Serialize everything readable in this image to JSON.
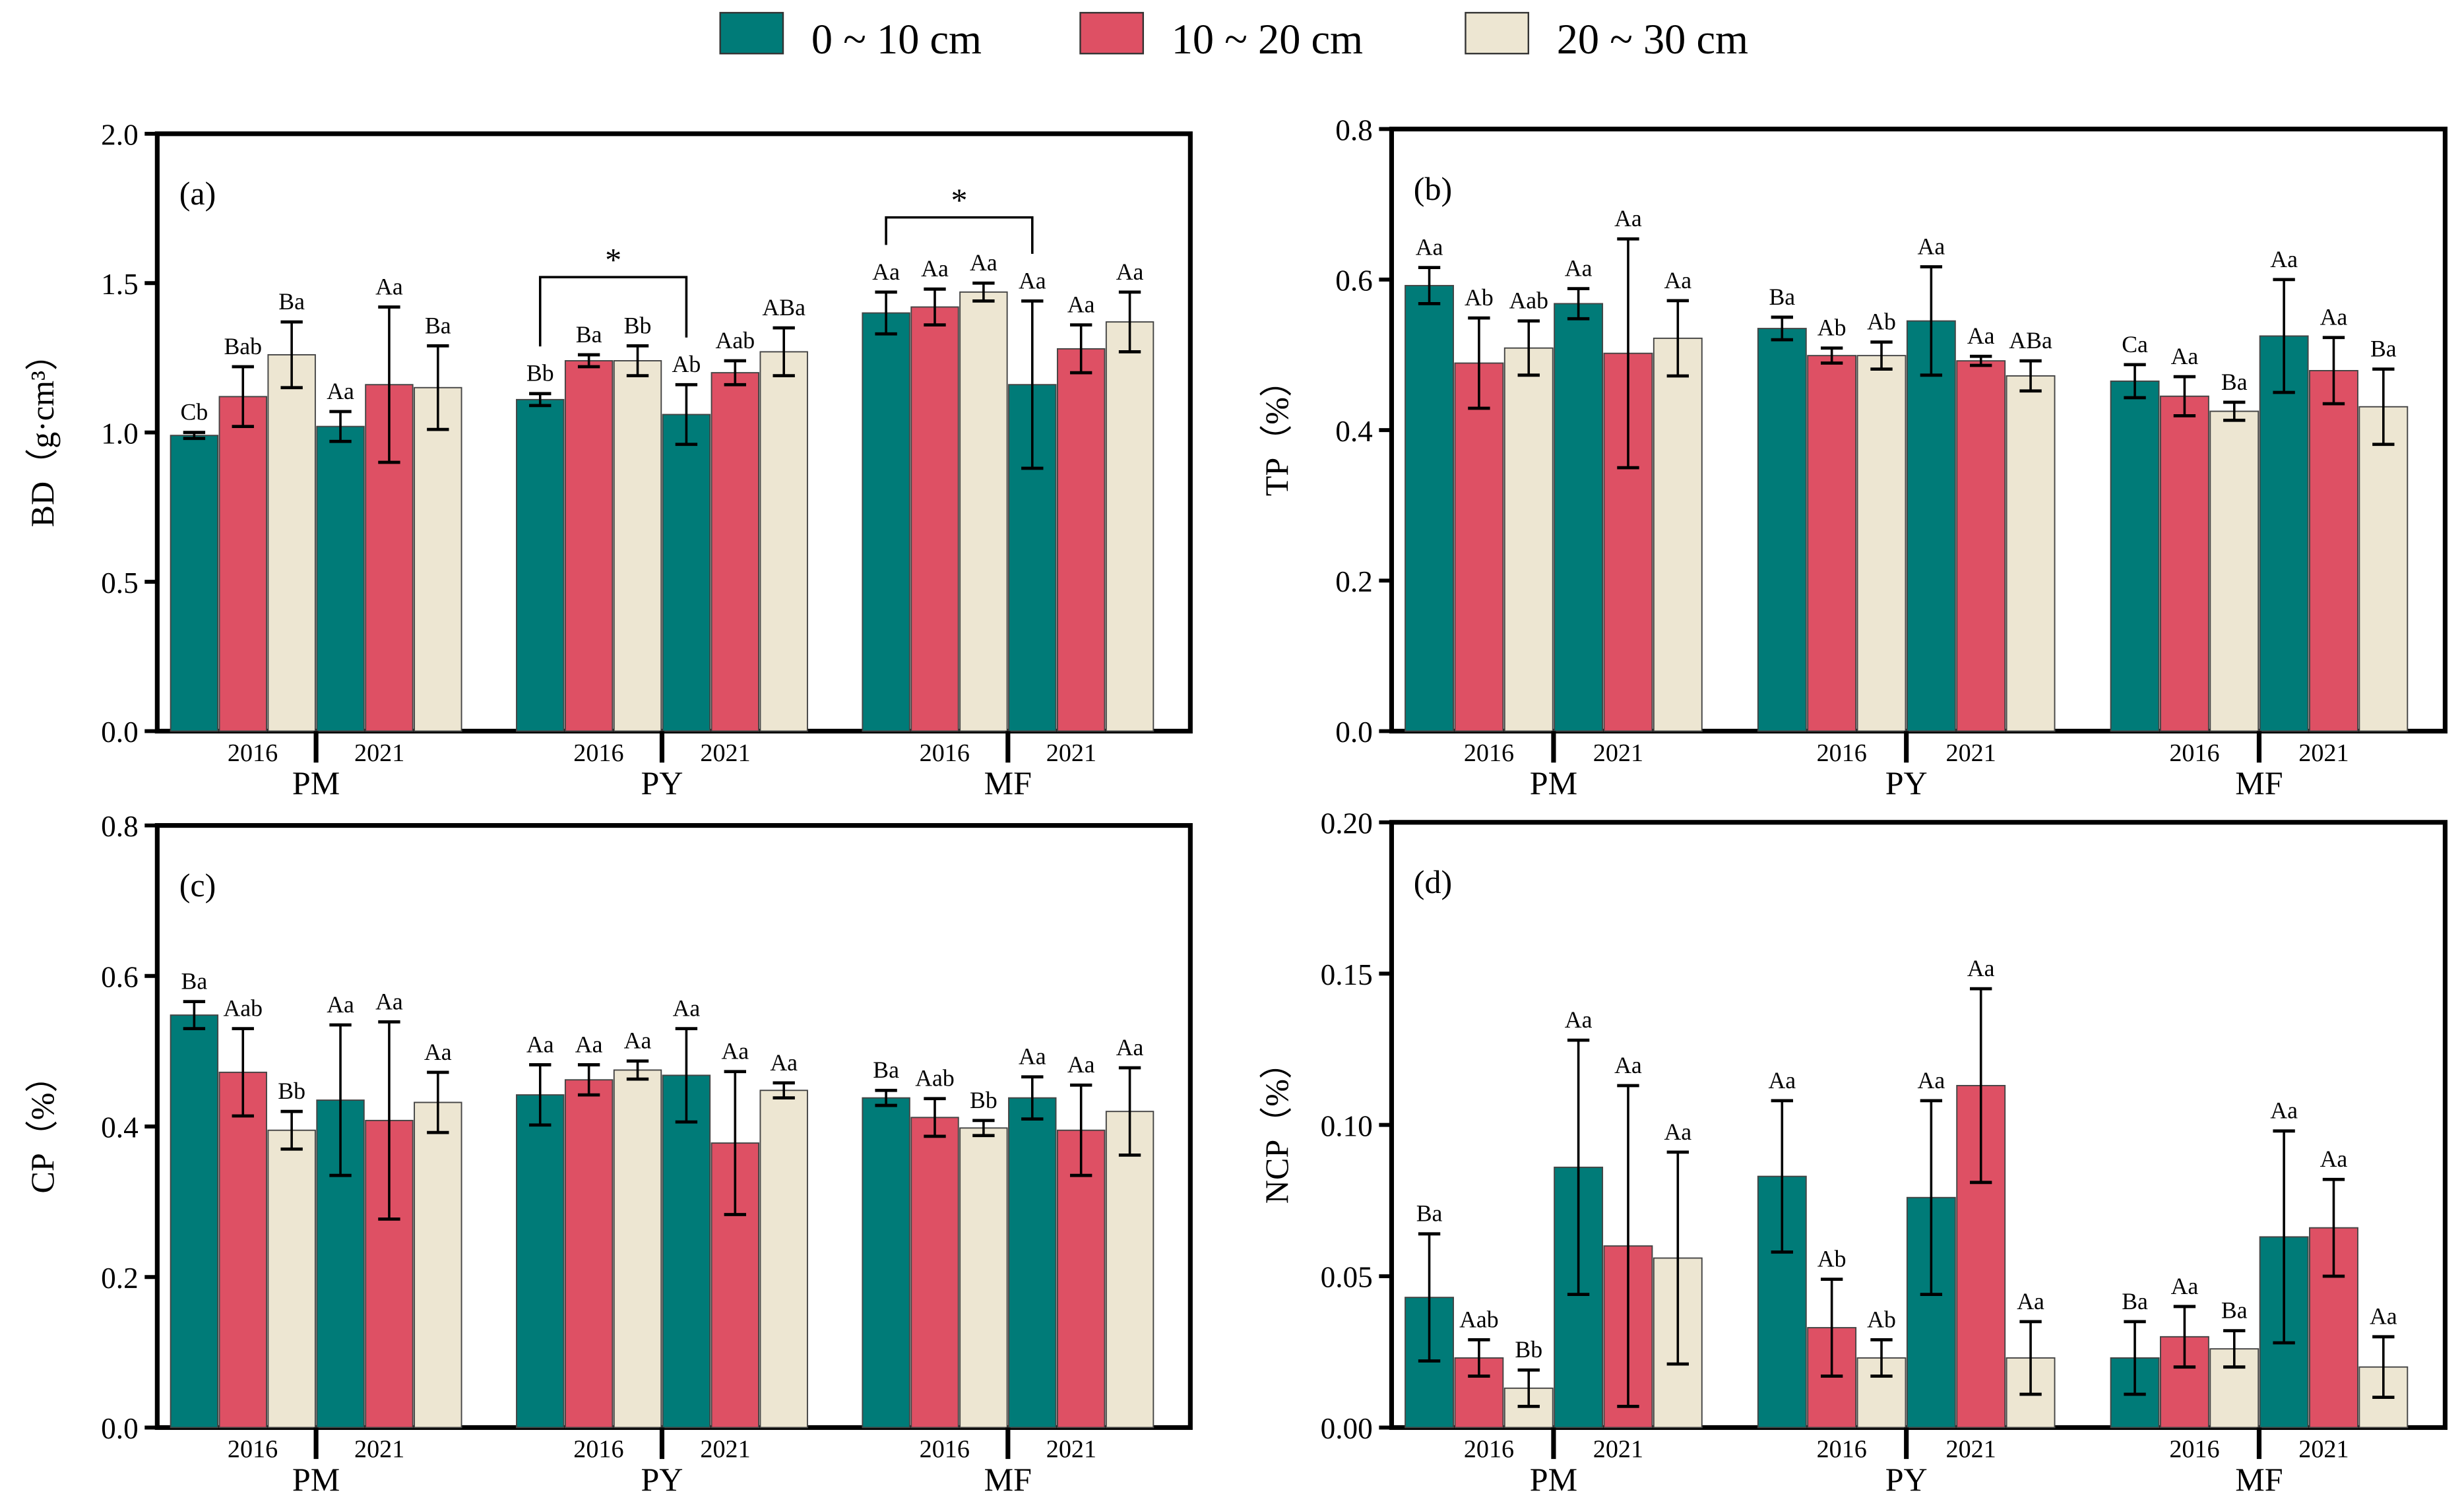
{
  "legend": {
    "items": [
      {
        "label": "0 ~ 10 cm",
        "color": "#007b78"
      },
      {
        "label": "10 ~ 20 cm",
        "color": "#de5064"
      },
      {
        "label": "20 ~ 30 cm",
        "color": "#ede6d2"
      }
    ]
  },
  "chart_data": [
    {
      "type": "bar",
      "panel": "(a)",
      "ylabel": "BD（g·cm³）",
      "ylim": [
        0,
        2.0
      ],
      "yticks": [
        "0.0",
        "0.5",
        "1.0",
        "1.5",
        "2.0"
      ],
      "ytick_values": [
        0,
        0.5,
        1.0,
        1.5,
        2.0
      ],
      "sites": [
        "PM",
        "PY",
        "MF"
      ],
      "years": [
        "2016",
        "2021"
      ],
      "series_order": [
        "0 ~ 10 cm",
        "10 ~ 20 cm",
        "20 ~ 30 cm"
      ],
      "values": {
        "PM": {
          "2016": [
            0.99,
            1.12,
            1.26
          ],
          "2021": [
            1.02,
            1.16,
            1.15
          ]
        },
        "PY": {
          "2016": [
            1.11,
            1.24,
            1.24
          ],
          "2021": [
            1.06,
            1.2,
            1.27
          ]
        },
        "MF": {
          "2016": [
            1.4,
            1.42,
            1.47
          ],
          "2021": [
            1.16,
            1.28,
            1.37
          ]
        }
      },
      "errors": {
        "PM": {
          "2016": [
            0.01,
            0.1,
            0.11
          ],
          "2021": [
            0.05,
            0.26,
            0.14
          ]
        },
        "PY": {
          "2016": [
            0.02,
            0.02,
            0.05
          ],
          "2021": [
            0.1,
            0.04,
            0.08
          ]
        },
        "MF": {
          "2016": [
            0.07,
            0.06,
            0.03
          ],
          "2021": [
            0.28,
            0.08,
            0.1
          ]
        }
      },
      "letters": {
        "PM": {
          "2016": [
            "Cb",
            "Bab",
            "Ba"
          ],
          "2021": [
            "Aa",
            "Aa",
            "Ba"
          ]
        },
        "PY": {
          "2016": [
            "Bb",
            "Ba",
            "Bb"
          ],
          "2021": [
            "Ab",
            "Aab",
            "ABa"
          ]
        },
        "MF": {
          "2016": [
            "Aa",
            "Aa",
            "Aa"
          ],
          "2021": [
            "Aa",
            "Aa",
            "Aa"
          ]
        }
      },
      "significance": [
        {
          "site": "PY",
          "between": "0 ~ 10 cm 2016 vs 2021",
          "mark": "*",
          "level": 1.52
        },
        {
          "site": "MF",
          "between": "0 ~ 10 cm 2016 vs 2021",
          "mark": "*",
          "level": 1.72
        }
      ]
    },
    {
      "type": "bar",
      "panel": "(b)",
      "ylabel": "TP（%）",
      "ylim": [
        0,
        0.8
      ],
      "yticks": [
        "0.0",
        "0.2",
        "0.4",
        "0.6",
        "0.8"
      ],
      "ytick_values": [
        0,
        0.2,
        0.4,
        0.6,
        0.8
      ],
      "sites": [
        "PM",
        "PY",
        "MF"
      ],
      "years": [
        "2016",
        "2021"
      ],
      "series_order": [
        "0 ~ 10 cm",
        "10 ~ 20 cm",
        "20 ~ 30 cm"
      ],
      "values": {
        "PM": {
          "2016": [
            0.592,
            0.489,
            0.509
          ],
          "2021": [
            0.568,
            0.502,
            0.522
          ]
        },
        "PY": {
          "2016": [
            0.535,
            0.499,
            0.499
          ],
          "2021": [
            0.545,
            0.492,
            0.472
          ]
        },
        "MF": {
          "2016": [
            0.465,
            0.445,
            0.425
          ],
          "2021": [
            0.525,
            0.479,
            0.431
          ]
        }
      },
      "errors": {
        "PM": {
          "2016": [
            0.024,
            0.06,
            0.036
          ],
          "2021": [
            0.02,
            0.152,
            0.05
          ]
        },
        "PY": {
          "2016": [
            0.015,
            0.01,
            0.018
          ],
          "2021": [
            0.072,
            0.006,
            0.02
          ]
        },
        "MF": {
          "2016": [
            0.022,
            0.026,
            0.012
          ],
          "2021": [
            0.075,
            0.044,
            0.05
          ]
        }
      },
      "letters": {
        "PM": {
          "2016": [
            "Aa",
            "Ab",
            "Aab"
          ],
          "2021": [
            "Aa",
            "Aa",
            "Aa"
          ]
        },
        "PY": {
          "2016": [
            "Ba",
            "Ab",
            "Ab"
          ],
          "2021": [
            "Aa",
            "Aa",
            "ABa"
          ]
        },
        "MF": {
          "2016": [
            "Ca",
            "Aa",
            "Ba"
          ],
          "2021": [
            "Aa",
            "Aa",
            "Ba"
          ]
        }
      }
    },
    {
      "type": "bar",
      "panel": "(c)",
      "ylabel": "CP（%）",
      "ylim": [
        0,
        0.8
      ],
      "yticks": [
        "0.0",
        "0.2",
        "0.4",
        "0.6",
        "0.8"
      ],
      "ytick_values": [
        0,
        0.2,
        0.4,
        0.6,
        0.8
      ],
      "sites": [
        "PM",
        "PY",
        "MF"
      ],
      "years": [
        "2016",
        "2021"
      ],
      "series_order": [
        "0 ~ 10 cm",
        "10 ~ 20 cm",
        "20 ~ 30 cm"
      ],
      "values": {
        "PM": {
          "2016": [
            0.548,
            0.472,
            0.395
          ],
          "2021": [
            0.435,
            0.408,
            0.432
          ]
        },
        "PY": {
          "2016": [
            0.442,
            0.462,
            0.475
          ],
          "2021": [
            0.468,
            0.378,
            0.448
          ]
        },
        "MF": {
          "2016": [
            0.438,
            0.412,
            0.398
          ],
          "2021": [
            0.438,
            0.395,
            0.42
          ]
        }
      },
      "errors": {
        "PM": {
          "2016": [
            0.018,
            0.058,
            0.025
          ],
          "2021": [
            0.1,
            0.131,
            0.04
          ]
        },
        "PY": {
          "2016": [
            0.04,
            0.02,
            0.012
          ],
          "2021": [
            0.062,
            0.095,
            0.01
          ]
        },
        "MF": {
          "2016": [
            0.01,
            0.025,
            0.01
          ],
          "2021": [
            0.028,
            0.06,
            0.058
          ]
        }
      },
      "letters": {
        "PM": {
          "2016": [
            "Ba",
            "Aab",
            "Bb"
          ],
          "2021": [
            "Aa",
            "Aa",
            "Aa"
          ]
        },
        "PY": {
          "2016": [
            "Aa",
            "Aa",
            "Aa"
          ],
          "2021": [
            "Aa",
            "Aa",
            "Aa"
          ]
        },
        "MF": {
          "2016": [
            "Ba",
            "Aab",
            "Bb"
          ],
          "2021": [
            "Aa",
            "Aa",
            "Aa"
          ]
        }
      }
    },
    {
      "type": "bar",
      "panel": "(d)",
      "ylabel": "NCP（%）",
      "ylim": [
        0,
        0.2
      ],
      "yticks": [
        "0.00",
        "0.05",
        "0.10",
        "0.15",
        "0.20"
      ],
      "ytick_values": [
        0,
        0.05,
        0.1,
        0.15,
        0.2
      ],
      "sites": [
        "PM",
        "PY",
        "MF"
      ],
      "years": [
        "2016",
        "2021"
      ],
      "series_order": [
        "0 ~ 10 cm",
        "10 ~ 20 cm",
        "20 ~ 30 cm"
      ],
      "values": {
        "PM": {
          "2016": [
            0.043,
            0.023,
            0.013
          ],
          "2021": [
            0.086,
            0.06,
            0.056
          ]
        },
        "PY": {
          "2016": [
            0.083,
            0.033,
            0.023
          ],
          "2021": [
            0.076,
            0.113,
            0.023
          ]
        },
        "MF": {
          "2016": [
            0.023,
            0.03,
            0.026
          ],
          "2021": [
            0.063,
            0.066,
            0.02
          ]
        }
      },
      "errors": {
        "PM": {
          "2016": [
            0.021,
            0.006,
            0.006
          ],
          "2021": [
            0.042,
            0.053,
            0.035
          ]
        },
        "PY": {
          "2016": [
            0.025,
            0.016,
            0.006
          ],
          "2021": [
            0.032,
            0.032,
            0.012
          ]
        },
        "MF": {
          "2016": [
            0.012,
            0.01,
            0.006
          ],
          "2021": [
            0.035,
            0.016,
            0.01
          ]
        }
      },
      "letters": {
        "PM": {
          "2016": [
            "Ba",
            "Aab",
            "Bb"
          ],
          "2021": [
            "Aa",
            "Aa",
            "Aa"
          ]
        },
        "PY": {
          "2016": [
            "Aa",
            "Ab",
            "Ab"
          ],
          "2021": [
            "Aa",
            "Aa",
            "Aa"
          ]
        },
        "MF": {
          "2016": [
            "Ba",
            "Aa",
            "Ba"
          ],
          "2021": [
            "Aa",
            "Aa",
            "Aa"
          ]
        }
      }
    }
  ]
}
